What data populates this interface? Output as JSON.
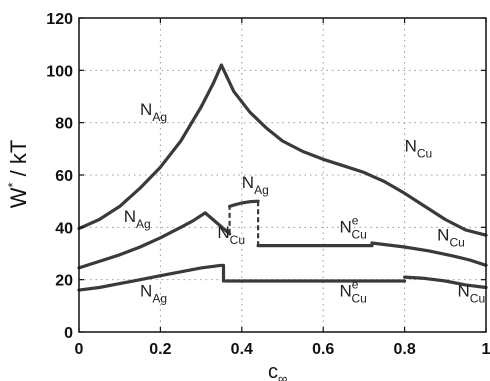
{
  "chart_data": {
    "type": "line",
    "title": "",
    "xlabel": "c",
    "xlabel_sub": "∞",
    "ylabel": "W",
    "ylabel_sup": "*",
    "ylabel_tail": " / kT",
    "xlim": [
      0,
      1
    ],
    "ylim": [
      0,
      120
    ],
    "xticks": [
      0,
      0.2,
      0.4,
      0.6,
      0.8,
      1
    ],
    "xtick_labels": [
      "0",
      "0.2",
      "0.4",
      "0.6",
      "0.8",
      "1"
    ],
    "yticks": [
      0,
      20,
      40,
      60,
      80,
      100,
      120
    ],
    "ytick_labels": [
      "0",
      "20",
      "40",
      "60",
      "80",
      "100",
      "120"
    ],
    "grid": true,
    "series": [
      {
        "color": "#3a3a3a",
        "points": [
          [
            0,
            39.5
          ],
          [
            0.05,
            43
          ],
          [
            0.1,
            48
          ],
          [
            0.15,
            55
          ],
          [
            0.2,
            63
          ],
          [
            0.25,
            73
          ],
          [
            0.3,
            86
          ],
          [
            0.33,
            95
          ],
          [
            0.35,
            102
          ]
        ]
      },
      {
        "color": "#3a3a3a",
        "points": [
          [
            0.35,
            102
          ],
          [
            0.38,
            92
          ],
          [
            0.42,
            84
          ],
          [
            0.46,
            78
          ],
          [
            0.5,
            73
          ],
          [
            0.55,
            69
          ],
          [
            0.6,
            66
          ],
          [
            0.65,
            63.5
          ],
          [
            0.7,
            61
          ],
          [
            0.75,
            57.5
          ],
          [
            0.8,
            53
          ],
          [
            0.85,
            48
          ],
          [
            0.9,
            43
          ],
          [
            0.95,
            39
          ],
          [
            1.0,
            37
          ]
        ]
      },
      {
        "color": "#3a3a3a",
        "points": [
          [
            0,
            24.5
          ],
          [
            0.05,
            27
          ],
          [
            0.1,
            29.5
          ],
          [
            0.15,
            32.5
          ],
          [
            0.2,
            36
          ],
          [
            0.25,
            40
          ],
          [
            0.28,
            42.5
          ],
          [
            0.31,
            45.5
          ],
          [
            0.37,
            37.5
          ]
        ]
      },
      {
        "color": "#3a3a3a",
        "dash": "5 3",
        "points": [
          [
            0.37,
            37.5
          ],
          [
            0.37,
            48
          ]
        ]
      },
      {
        "color": "#3a3a3a",
        "points": [
          [
            0.37,
            48
          ],
          [
            0.38,
            48.5
          ],
          [
            0.4,
            49.3
          ],
          [
            0.42,
            49.8
          ],
          [
            0.44,
            50
          ]
        ]
      },
      {
        "color": "#3a3a3a",
        "dash": "5 3",
        "points": [
          [
            0.44,
            50
          ],
          [
            0.44,
            33
          ]
        ]
      },
      {
        "color": "#3a3a3a",
        "points": [
          [
            0.44,
            33
          ],
          [
            0.72,
            33
          ]
        ]
      },
      {
        "color": "#3a3a3a",
        "points": [
          [
            0.72,
            34
          ],
          [
            0.8,
            32.5
          ],
          [
            0.86,
            31
          ],
          [
            0.92,
            29
          ],
          [
            0.96,
            27.5
          ],
          [
            1.0,
            25.5
          ]
        ]
      },
      {
        "color": "#3a3a3a",
        "points": [
          [
            0,
            16
          ],
          [
            0.05,
            17
          ],
          [
            0.1,
            18.5
          ],
          [
            0.15,
            20
          ],
          [
            0.2,
            21.5
          ],
          [
            0.25,
            23
          ],
          [
            0.3,
            24.5
          ],
          [
            0.35,
            25.5
          ]
        ]
      },
      {
        "color": "#3a3a3a",
        "points": [
          [
            0.355,
            25.5
          ],
          [
            0.355,
            19.5
          ]
        ]
      },
      {
        "color": "#3a3a3a",
        "points": [
          [
            0.36,
            19.5
          ],
          [
            0.8,
            19.5
          ]
        ]
      },
      {
        "color": "#3a3a3a",
        "points": [
          [
            0.8,
            21
          ],
          [
            0.85,
            20.5
          ],
          [
            0.9,
            19.5
          ],
          [
            0.95,
            18
          ],
          [
            1.0,
            17
          ]
        ]
      }
    ],
    "annotations": [
      {
        "base": "N",
        "sub": "Ag",
        "sup": "",
        "x": 0.15,
        "y": 83
      },
      {
        "base": "N",
        "sub": "Cu",
        "sup": "",
        "x": 0.8,
        "y": 69
      },
      {
        "base": "N",
        "sub": "Ag",
        "sup": "",
        "x": 0.4,
        "y": 55
      },
      {
        "base": "N",
        "sub": "Ag",
        "sup": "",
        "x": 0.11,
        "y": 42
      },
      {
        "base": "N",
        "sub": "Cu",
        "sup": "",
        "x": 0.34,
        "y": 36
      },
      {
        "base": "N",
        "sub": "Cu",
        "sup": "e",
        "x": 0.64,
        "y": 38
      },
      {
        "base": "N",
        "sub": "Cu",
        "sup": "",
        "x": 0.88,
        "y": 35
      },
      {
        "base": "N",
        "sub": "Ag",
        "sup": "",
        "x": 0.15,
        "y": 13.5
      },
      {
        "base": "N",
        "sub": "Cu",
        "sup": "e",
        "x": 0.64,
        "y": 13.5
      },
      {
        "base": "N",
        "sub": "Cu",
        "sup": "",
        "x": 0.93,
        "y": 13.5
      }
    ]
  }
}
